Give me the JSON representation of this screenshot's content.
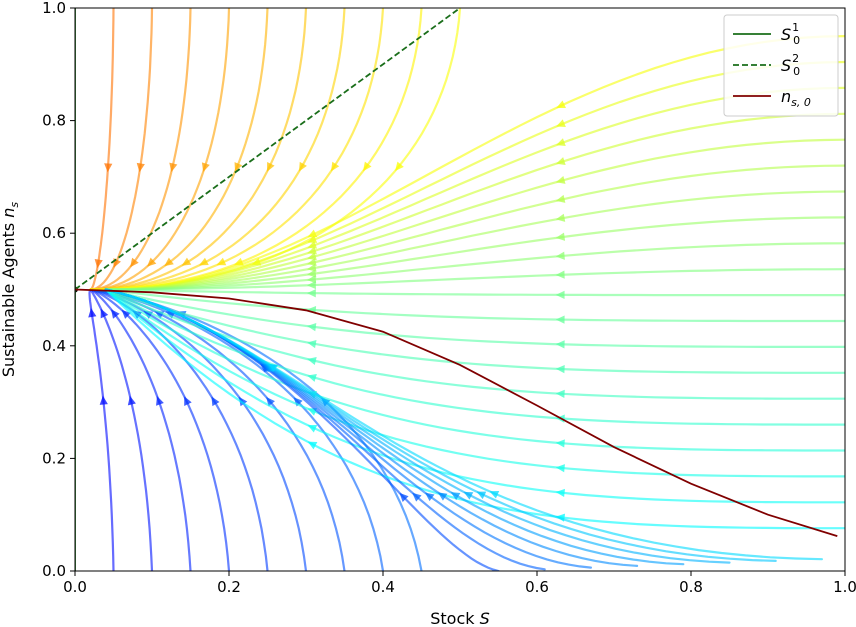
{
  "chart_data": {
    "type": "line",
    "subtype": "streamplot",
    "xlabel": "Stock S",
    "ylabel": "Sustainable Agents n_s",
    "xlim": [
      0.0,
      1.0
    ],
    "ylim": [
      0.0,
      1.0
    ],
    "x_ticks": [
      0.0,
      0.2,
      0.4,
      0.6,
      0.8,
      1.0
    ],
    "y_ticks": [
      0.0,
      0.2,
      0.4,
      0.6,
      0.8,
      1.0
    ],
    "x_tick_labels": [
      "0.0",
      "0.2",
      "0.4",
      "0.6",
      "0.8",
      "1.0"
    ],
    "y_tick_labels": [
      "0.0",
      "0.2",
      "0.4",
      "0.6",
      "0.8",
      "1.0"
    ],
    "grid": false,
    "legend_position": "top-right",
    "colormap": "jet (streamline speed)",
    "fixed_point": {
      "x": 0.0,
      "y": 0.5
    },
    "series": [
      {
        "name": "S_0^1",
        "label_main": "S",
        "label_sub": "0",
        "label_sup": "1",
        "style": "solid",
        "color": "#1a6e1a",
        "x": [
          0.0,
          0.0
        ],
        "y": [
          0.0,
          1.0
        ]
      },
      {
        "name": "S_0^2",
        "label_main": "S",
        "label_sub": "0",
        "label_sup": "2",
        "style": "dashed",
        "color": "#1a6e1a",
        "x": [
          0.0,
          0.5
        ],
        "y": [
          0.5,
          1.0
        ]
      },
      {
        "name": "n_{s,0}",
        "label_main": "n",
        "label_sub": "s, 0",
        "label_sup": "",
        "style": "solid",
        "color": "#800000",
        "x": [
          0.0,
          0.1,
          0.2,
          0.3,
          0.4,
          0.5,
          0.6,
          0.7,
          0.8,
          0.9,
          0.99
        ],
        "y": [
          0.5,
          0.495,
          0.484,
          0.463,
          0.425,
          0.366,
          0.294,
          0.22,
          0.155,
          0.1,
          0.062
        ]
      }
    ]
  }
}
